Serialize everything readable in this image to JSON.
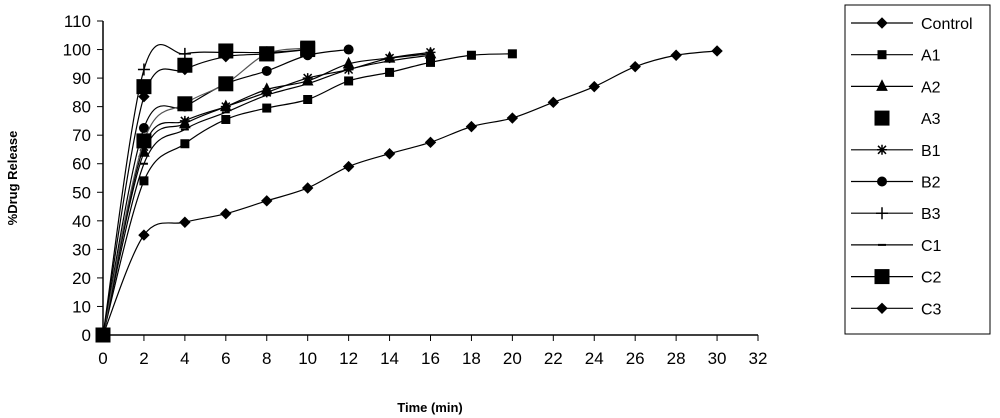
{
  "chart_data": {
    "type": "line",
    "title": "",
    "xlabel": "Time (min)",
    "ylabel": "%Drug Release",
    "xlim": [
      0,
      32
    ],
    "ylim": [
      0,
      110
    ],
    "xticks": [
      0,
      2,
      4,
      6,
      8,
      10,
      12,
      14,
      16,
      18,
      20,
      22,
      24,
      26,
      28,
      30,
      32
    ],
    "yticks": [
      0,
      10,
      20,
      30,
      40,
      50,
      60,
      70,
      80,
      90,
      100,
      110
    ],
    "grid": false,
    "legend_placement": "right",
    "series": [
      {
        "name": "Control",
        "marker": "diamond",
        "x": [
          0,
          2,
          4,
          6,
          8,
          10,
          12,
          14,
          16,
          18,
          20,
          22,
          24,
          26,
          28,
          30
        ],
        "values": [
          0,
          35,
          39.5,
          42.5,
          47,
          51.5,
          59,
          63.5,
          67.5,
          73,
          76,
          81.5,
          87,
          94,
          98,
          99.5
        ]
      },
      {
        "name": "A1",
        "marker": "square",
        "x": [
          0,
          2,
          4,
          6,
          8,
          10,
          12,
          14,
          16,
          18,
          20
        ],
        "values": [
          0,
          54,
          67,
          75.5,
          79.5,
          82.5,
          89,
          92,
          95.5,
          98,
          98.5
        ]
      },
      {
        "name": "A2",
        "marker": "triangle",
        "x": [
          0,
          2,
          4,
          6,
          8,
          10,
          12,
          14,
          16
        ],
        "values": [
          0,
          64,
          74,
          80,
          86,
          89,
          95,
          97,
          98.5
        ]
      },
      {
        "name": "A3",
        "marker": "bigsquare",
        "x": [
          0,
          2,
          4,
          6,
          8,
          10
        ],
        "values": [
          0,
          87,
          94.5,
          99.5,
          98.5,
          100
        ]
      },
      {
        "name": "B1",
        "marker": "star",
        "x": [
          0,
          2,
          4,
          6,
          8,
          10,
          12,
          14,
          16
        ],
        "values": [
          0,
          66,
          75,
          80,
          85,
          90,
          93,
          97,
          99
        ]
      },
      {
        "name": "B2",
        "marker": "circle",
        "x": [
          0,
          2,
          4,
          6,
          8,
          10,
          12
        ],
        "values": [
          0,
          72.5,
          80,
          88,
          92.5,
          98,
          100
        ]
      },
      {
        "name": "B3",
        "marker": "plus",
        "x": [
          0,
          2,
          4,
          6,
          8,
          10
        ],
        "values": [
          0,
          93,
          98.5,
          99,
          99,
          100
        ]
      },
      {
        "name": "C1",
        "marker": "dash",
        "x": [
          0,
          2,
          4,
          6,
          8,
          10,
          12,
          14,
          16
        ],
        "values": [
          0,
          60,
          72,
          78,
          84,
          88,
          93,
          96,
          98
        ]
      },
      {
        "name": "C2",
        "marker": "bigsquare",
        "x": [
          0,
          2,
          4,
          6,
          8,
          10
        ],
        "values": [
          0,
          68,
          81,
          88,
          98.5,
          100.5
        ]
      },
      {
        "name": "C3",
        "marker": "diamond",
        "x": [
          0,
          2,
          4,
          6,
          8,
          10
        ],
        "values": [
          0,
          83.5,
          93,
          97.5,
          98.5,
          100
        ]
      }
    ]
  }
}
